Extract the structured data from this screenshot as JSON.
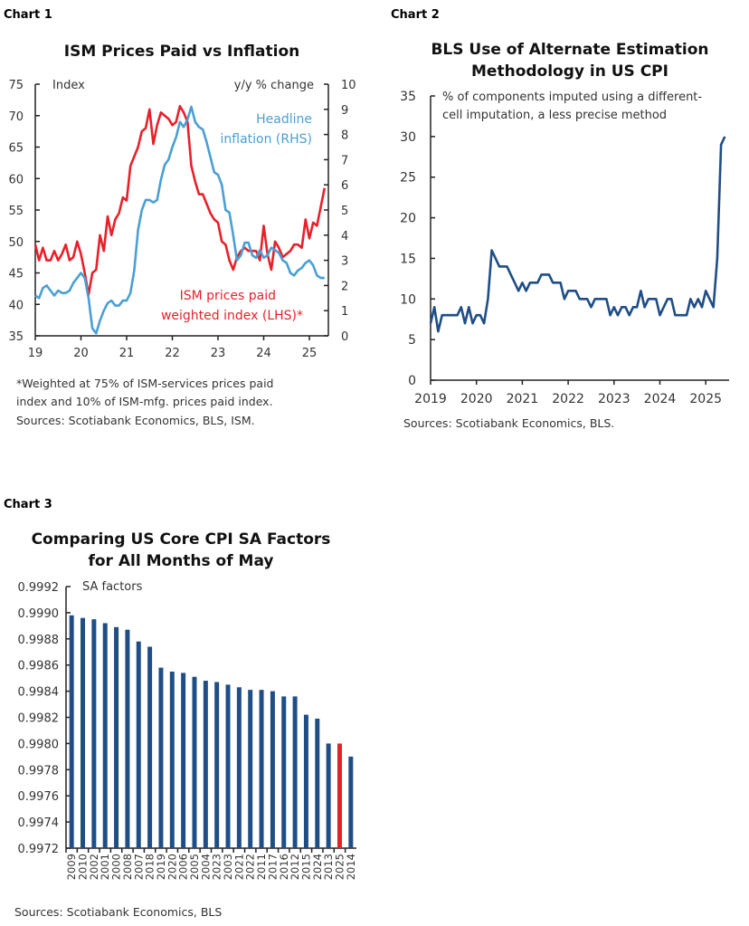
{
  "chart_data": [
    {
      "label": "Chart 1",
      "type": "line",
      "title": "ISM Prices Paid vs Inflation",
      "ylabel_left": "Index",
      "ylabel_right": "y/y % change",
      "ylim_left": [
        35,
        75
      ],
      "ylim_right": [
        0,
        10
      ],
      "yticks_left": [
        "75",
        "70",
        "65",
        "60",
        "55",
        "50",
        "45",
        "40",
        "35"
      ],
      "yticks_right": [
        "10",
        "9",
        "8",
        "7",
        "6",
        "5",
        "4",
        "3",
        "2",
        "1",
        "0"
      ],
      "xticks": [
        "19",
        "20",
        "21",
        "22",
        "23",
        "24",
        "25"
      ],
      "x_start": "2019-01",
      "frequency": "monthly",
      "grid": false,
      "series": [
        {
          "name": "ISM prices paid weighted index (LHS)*",
          "axis": "left",
          "color": "#e8202a",
          "values": [
            49.5,
            47,
            49,
            47,
            47,
            48.5,
            47,
            48,
            49.5,
            47,
            47.5,
            50,
            48,
            45,
            41.5,
            45,
            45.5,
            51,
            48.5,
            54,
            51,
            53.5,
            54.5,
            57,
            56.5,
            62,
            63.5,
            65,
            67.5,
            68,
            71,
            65.5,
            68.5,
            70.5,
            70,
            69.5,
            68.5,
            69,
            71.5,
            70.5,
            69,
            62,
            59.5,
            57.5,
            57.5,
            56,
            54.5,
            53.5,
            53,
            50,
            49.5,
            47,
            45.5,
            47.5,
            48.5,
            49,
            48.5,
            48.5,
            48.5,
            47,
            52.5,
            48,
            45.5,
            50,
            49,
            47.5,
            48,
            48.5,
            49.5,
            49.5,
            49,
            53.5,
            50.5,
            53,
            52.5,
            55.5,
            58.5
          ]
        },
        {
          "name": "Headline inflation (RHS)",
          "axis": "right",
          "color": "#4a9fd4",
          "values": [
            1.6,
            1.5,
            1.9,
            2.0,
            1.8,
            1.6,
            1.8,
            1.7,
            1.7,
            1.8,
            2.1,
            2.3,
            2.5,
            2.3,
            1.5,
            0.3,
            0.1,
            0.6,
            1.0,
            1.3,
            1.4,
            1.2,
            1.2,
            1.4,
            1.4,
            1.7,
            2.6,
            4.2,
            5.0,
            5.4,
            5.4,
            5.3,
            5.4,
            6.2,
            6.8,
            7.0,
            7.5,
            7.9,
            8.5,
            8.3,
            8.6,
            9.1,
            8.5,
            8.3,
            8.2,
            7.7,
            7.1,
            6.5,
            6.4,
            6.0,
            5.0,
            4.9,
            4.0,
            3.0,
            3.2,
            3.7,
            3.7,
            3.2,
            3.1,
            3.4,
            3.1,
            3.2,
            3.5,
            3.4,
            3.3,
            3.0,
            2.9,
            2.5,
            2.4,
            2.6,
            2.7,
            2.9,
            3.0,
            2.8,
            2.4,
            2.3,
            2.3
          ]
        }
      ],
      "annotations": {
        "series1_label": [
          "ISM prices paid",
          "weighted index (LHS)*"
        ],
        "series2_label": [
          "Headline",
          "inflation (RHS)"
        ]
      },
      "footnotes": [
        "*Weighted at 75% of ISM-services prices paid",
        "index and 10% of ISM-mfg. prices paid index.",
        "Sources: Scotiabank Economics, BLS, ISM."
      ]
    },
    {
      "label": "Chart 2",
      "type": "line",
      "title": [
        "BLS Use of Alternate Estimation",
        "Methodology in US CPI"
      ],
      "ylabel": [
        "% of components imputed using a different-",
        "cell imputation, a less precise method"
      ],
      "ylim": [
        0,
        35
      ],
      "yticks": [
        "35",
        "30",
        "25",
        "20",
        "15",
        "10",
        "5",
        "0"
      ],
      "xticks": [
        "2019",
        "2020",
        "2021",
        "2022",
        "2023",
        "2024",
        "2025"
      ],
      "x_start": "2019-01",
      "frequency": "monthly",
      "grid": false,
      "series": [
        {
          "color": "#1f4e86",
          "values": [
            7,
            9,
            6,
            8,
            8,
            8,
            8,
            8,
            9,
            7,
            9,
            7,
            8,
            8,
            7,
            10,
            16,
            15,
            14,
            14,
            14,
            13,
            12,
            11,
            12,
            11,
            12,
            12,
            12,
            13,
            13,
            13,
            12,
            12,
            12,
            10,
            11,
            11,
            11,
            10,
            10,
            10,
            9,
            10,
            10,
            10,
            10,
            8,
            9,
            8,
            9,
            9,
            8,
            9,
            9,
            11,
            9,
            10,
            10,
            10,
            8,
            9,
            10,
            10,
            8,
            8,
            8,
            8,
            10,
            9,
            10,
            9,
            11,
            10,
            9,
            15,
            29,
            30
          ]
        }
      ],
      "footnotes": [
        "Sources: Scotiabank Economics, BLS."
      ]
    },
    {
      "label": "Chart 3",
      "type": "bar",
      "title": [
        "Comparing US Core CPI SA Factors",
        "for All Months of May"
      ],
      "ylabel": "SA factors",
      "ylim": [
        0.9972,
        0.9992
      ],
      "yticks": [
        "0.9992",
        "0.9990",
        "0.9988",
        "0.9986",
        "0.9984",
        "0.9982",
        "0.9980",
        "0.9978",
        "0.9976",
        "0.9974",
        "0.9972"
      ],
      "grid": false,
      "categories": [
        "2009",
        "2010",
        "2002",
        "2001",
        "2000",
        "2008",
        "2007",
        "2018",
        "2019",
        "2020",
        "2006",
        "2005",
        "2004",
        "2023",
        "2003",
        "2021",
        "2022",
        "2011",
        "2017",
        "2016",
        "2012",
        "2015",
        "2024",
        "2013",
        "2025",
        "2014"
      ],
      "values": [
        0.99898,
        0.99896,
        0.99895,
        0.99892,
        0.99889,
        0.99887,
        0.99878,
        0.99874,
        0.99858,
        0.99855,
        0.99854,
        0.99851,
        0.99848,
        0.99847,
        0.99845,
        0.99843,
        0.99841,
        0.99841,
        0.9984,
        0.99836,
        0.99836,
        0.99822,
        0.99819,
        0.998,
        0.998,
        0.9979
      ],
      "bar_color": "#1f4e86",
      "highlight": {
        "category": "2025",
        "color": "#e8202a"
      },
      "footnotes": [
        "Sources: Scotiabank Economics, BLS"
      ]
    }
  ]
}
